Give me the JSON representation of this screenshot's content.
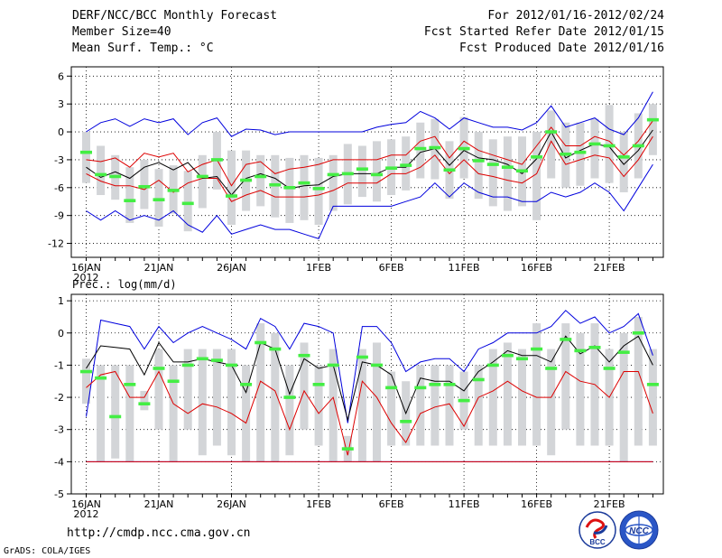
{
  "header": {
    "title": "DERF/NCC/BCC Monthly Forecast",
    "member_size": "Member Size=40",
    "variable": "Mean Surf. Temp.: °C",
    "period": "For 2012/01/16-2012/02/24",
    "started": "Fcst Started Refer Date 2012/01/15",
    "produced": "Fcst Produced Date 2012/01/16"
  },
  "footer": {
    "url": "http://cmdp.ncc.cma.gov.cn",
    "grads": "GrADS: COLA/IGES",
    "logo_bcc": "BCC",
    "logo_ncc": "NCC"
  },
  "colors": {
    "box": "#d3d5d8",
    "median": "#44ee44",
    "mean": "#000000",
    "inner": "#dd0000",
    "outer": "#0000dd"
  },
  "chart_data": [
    {
      "type": "box-and-line",
      "title": "Mean Surf. Temp.: °C",
      "days": [
        "16JAN",
        "17JAN",
        "18JAN",
        "19JAN",
        "20JAN",
        "21JAN",
        "22JAN",
        "23JAN",
        "24JAN",
        "25JAN",
        "26JAN",
        "27JAN",
        "28JAN",
        "29JAN",
        "30JAN",
        "31JAN",
        "1FEB",
        "2FEB",
        "3FEB",
        "4FEB",
        "5FEB",
        "6FEB",
        "7FEB",
        "8FEB",
        "9FEB",
        "10FEB",
        "11FEB",
        "12FEB",
        "13FEB",
        "14FEB",
        "15FEB",
        "16FEB",
        "17FEB",
        "18FEB",
        "19FEB",
        "20FEB",
        "21FEB",
        "22FEB",
        "23FEB",
        "24FEB"
      ],
      "x_tick_labels": [
        "16JAN",
        "21JAN",
        "26JAN",
        "1FEB",
        "6FEB",
        "11FEB",
        "16FEB",
        "21FEB"
      ],
      "year_label": "2012",
      "ylim": [
        -13.5,
        7
      ],
      "yticks": [
        -12,
        -9,
        -6,
        -3,
        0,
        3,
        6
      ],
      "median": [
        -2.2,
        -4.6,
        -4.8,
        -7.4,
        -5.9,
        -7.3,
        -6.3,
        -7.7,
        -4.8,
        -3.0,
        -6.9,
        -5.2,
        -4.8,
        -5.7,
        -6.0,
        -5.5,
        -6.1,
        -4.6,
        -4.5,
        -4.0,
        -4.6,
        -3.9,
        -3.6,
        -1.8,
        -1.7,
        -4.1,
        -1.8,
        -3.1,
        -3.5,
        -3.8,
        -4.2,
        -2.7,
        0.0,
        -2.4,
        -2.2,
        -1.3,
        -1.5,
        -2.7,
        -1.5,
        1.3
      ],
      "box_low": [
        -5.5,
        -6.8,
        -7.3,
        -9.8,
        -8.3,
        -10.2,
        -8.8,
        -10.7,
        -8.2,
        -6.2,
        -10.0,
        -8.5,
        -8.0,
        -9.2,
        -9.8,
        -9.5,
        -10.0,
        -8.5,
        -7.8,
        -7.0,
        -7.5,
        -6.8,
        -6.3,
        -5.0,
        -5.1,
        -7.2,
        -5.0,
        -7.2,
        -8.0,
        -8.5,
        -8.0,
        -9.5,
        -5.0,
        -6.0,
        -5.8,
        -5.0,
        -5.5,
        -6.5,
        -5.0,
        -2.5
      ],
      "box_high": [
        0.0,
        -1.5,
        -2.5,
        -3.8,
        -3.0,
        -4.0,
        -3.6,
        -4.2,
        -2.5,
        0.0,
        -2.0,
        -2.0,
        -2.5,
        -2.5,
        -2.8,
        -2.5,
        -2.8,
        -2.5,
        -1.3,
        -1.5,
        -1.0,
        -0.8,
        -0.5,
        1.0,
        1.4,
        -1.0,
        1.6,
        0.0,
        -0.8,
        -0.5,
        -0.5,
        0.0,
        2.3,
        1.0,
        1.0,
        1.4,
        2.9,
        0.0,
        2.0,
        3.0
      ],
      "mean": [
        -3.8,
        -4.9,
        -4.3,
        -5.0,
        -3.8,
        -3.3,
        -4.1,
        -3.3,
        -5.0,
        -4.8,
        -6.8,
        -5.0,
        -4.5,
        -5.0,
        -6.1,
        -5.8,
        -5.7,
        -4.8,
        -4.5,
        -4.5,
        -4.5,
        -3.8,
        -3.8,
        -2.2,
        -1.8,
        -3.6,
        -2.0,
        -2.8,
        -3.0,
        -3.5,
        -4.5,
        -2.9,
        0.0,
        -2.8,
        -2.0,
        -1.3,
        -1.6,
        -3.5,
        -2.0,
        0.2
      ],
      "inner_upper": [
        -3.0,
        -3.2,
        -2.8,
        -3.8,
        -2.3,
        -2.7,
        -2.3,
        -4.3,
        -3.5,
        -3.0,
        -5.8,
        -3.5,
        -3.2,
        -4.5,
        -4.0,
        -3.8,
        -3.5,
        -3.0,
        -3.0,
        -3.0,
        -3.0,
        -2.5,
        -2.5,
        -1.0,
        -0.5,
        -2.8,
        -1.0,
        -2.0,
        -2.5,
        -3.0,
        -3.5,
        -1.5,
        0.5,
        -1.5,
        -1.5,
        -0.5,
        -1.0,
        -2.5,
        -1.0,
        1.2
      ],
      "inner_lower": [
        -4.5,
        -5.3,
        -5.8,
        -5.8,
        -6.2,
        -5.2,
        -6.5,
        -5.5,
        -5.0,
        -5.0,
        -7.5,
        -6.8,
        -6.3,
        -7.0,
        -7.0,
        -7.0,
        -6.8,
        -6.3,
        -5.5,
        -5.5,
        -5.5,
        -4.5,
        -4.5,
        -3.8,
        -2.5,
        -4.5,
        -3.0,
        -4.5,
        -4.8,
        -5.2,
        -5.5,
        -4.5,
        -1.0,
        -3.5,
        -3.0,
        -2.5,
        -2.8,
        -4.8,
        -3.0,
        -0.5
      ],
      "outer_upper": [
        0.0,
        1.0,
        1.4,
        0.6,
        1.4,
        1.0,
        1.4,
        -0.3,
        1.0,
        1.5,
        -0.5,
        0.3,
        0.2,
        -0.3,
        0.0,
        0.0,
        0.0,
        0.0,
        0.0,
        0.0,
        0.5,
        0.8,
        1.0,
        2.2,
        1.5,
        0.3,
        1.5,
        1.0,
        0.5,
        0.5,
        0.2,
        1.0,
        2.8,
        0.5,
        1.0,
        1.5,
        0.3,
        -0.3,
        1.5,
        4.3
      ],
      "outer_lower": [
        -8.5,
        -9.5,
        -8.5,
        -9.5,
        -9.0,
        -9.5,
        -8.5,
        -10.0,
        -10.8,
        -9.0,
        -11.0,
        -10.5,
        -10.0,
        -10.5,
        -10.5,
        -11.0,
        -11.5,
        -8.0,
        -8.0,
        -8.0,
        -8.0,
        -8.0,
        -7.5,
        -7.0,
        -5.5,
        -7.0,
        -5.5,
        -6.5,
        -7.0,
        -7.0,
        -7.5,
        -7.5,
        -6.5,
        -7.0,
        -6.5,
        -5.5,
        -6.5,
        -8.5,
        -6.0,
        -3.5
      ]
    },
    {
      "type": "box-and-line",
      "title": "Prec.: log(mm/d)",
      "days": [
        "16JAN",
        "17JAN",
        "18JAN",
        "19JAN",
        "20JAN",
        "21JAN",
        "22JAN",
        "23JAN",
        "24JAN",
        "25JAN",
        "26JAN",
        "27JAN",
        "28JAN",
        "29JAN",
        "30JAN",
        "31JAN",
        "1FEB",
        "2FEB",
        "3FEB",
        "4FEB",
        "5FEB",
        "6FEB",
        "7FEB",
        "8FEB",
        "9FEB",
        "10FEB",
        "11FEB",
        "12FEB",
        "13FEB",
        "14FEB",
        "15FEB",
        "16FEB",
        "17FEB",
        "18FEB",
        "19FEB",
        "20FEB",
        "21FEB",
        "22FEB",
        "23FEB",
        "24FEB"
      ],
      "x_tick_labels": [
        "16JAN",
        "21JAN",
        "26JAN",
        "1FEB",
        "6FEB",
        "11FEB",
        "16FEB",
        "21FEB"
      ],
      "year_label": "2012",
      "ylim": [
        -5,
        1.2
      ],
      "yticks": [
        -5,
        -4,
        -3,
        -2,
        -1,
        0,
        1
      ],
      "median": [
        -1.2,
        -1.4,
        -2.6,
        -1.6,
        -2.2,
        -1.1,
        -1.5,
        -1.0,
        -0.8,
        -0.85,
        -1.0,
        -1.6,
        -0.3,
        -0.5,
        -2.0,
        -0.7,
        -1.6,
        -1.0,
        -3.6,
        -0.75,
        -1.0,
        -1.7,
        -2.75,
        -1.7,
        -1.6,
        -1.6,
        -2.1,
        -1.45,
        -1.0,
        -0.7,
        -0.8,
        -0.5,
        -1.1,
        -0.2,
        -0.55,
        -0.45,
        -1.1,
        -0.6,
        0.0,
        -1.6
      ],
      "box_low": [
        -2.2,
        -4.0,
        -3.9,
        -4.0,
        -2.4,
        -3.0,
        -4.0,
        -3.0,
        -3.8,
        -3.5,
        -3.8,
        -4.0,
        -4.0,
        -4.0,
        -3.8,
        -3.0,
        -3.5,
        -4.0,
        -4.0,
        -4.0,
        -4.0,
        -3.5,
        -3.5,
        -3.5,
        -3.5,
        -3.5,
        -3.0,
        -3.5,
        -3.5,
        -3.5,
        -3.5,
        -3.5,
        -3.8,
        -3.0,
        -3.5,
        -3.5,
        -3.5,
        -4.0,
        -3.5,
        -3.5
      ],
      "box_high": [
        -0.8,
        -1.0,
        -1.0,
        -1.0,
        -1.8,
        -0.5,
        -1.0,
        -0.5,
        -0.5,
        -0.5,
        -0.5,
        -1.0,
        0.3,
        0.0,
        -1.0,
        -0.3,
        -1.0,
        -0.5,
        -3.2,
        -0.5,
        -0.3,
        -1.2,
        -1.5,
        -1.0,
        -1.0,
        -1.0,
        -1.2,
        -1.0,
        -0.5,
        -0.3,
        -0.5,
        0.3,
        -0.5,
        0.3,
        0.0,
        0.3,
        -0.5,
        0.0,
        0.5,
        -0.5
      ],
      "mean": [
        -1.1,
        -0.4,
        -0.45,
        -0.5,
        -1.3,
        -0.3,
        -0.9,
        -0.9,
        -0.8,
        -0.9,
        -1.0,
        -1.85,
        -0.3,
        -0.5,
        -1.9,
        -0.8,
        -1.1,
        -1.0,
        -2.7,
        -0.9,
        -1.0,
        -1.3,
        -2.5,
        -1.4,
        -1.5,
        -1.5,
        -1.8,
        -1.2,
        -0.9,
        -0.55,
        -0.7,
        -0.7,
        -0.9,
        -0.1,
        -0.65,
        -0.4,
        -0.9,
        -0.4,
        -0.1,
        -1.0
      ],
      "inner_upper": [
        -1.7,
        -1.3,
        -1.2,
        -2.0,
        -2.0,
        -1.2,
        -2.2,
        -2.5,
        -2.2,
        -2.3,
        -2.5,
        -2.8,
        -1.5,
        -1.8,
        -3.0,
        -1.8,
        -2.5,
        -2.0,
        -3.8,
        -1.5,
        -2.0,
        -2.8,
        -3.4,
        -2.5,
        -2.3,
        -2.2,
        -2.9,
        -2.0,
        -1.8,
        -1.5,
        -1.8,
        -2.0,
        -2.0,
        -1.2,
        -1.5,
        -1.6,
        -2.0,
        -1.2,
        -1.2,
        -2.5
      ],
      "inner_lower": [
        -4.0,
        -4.0,
        -4.0,
        -4.0,
        -4.0,
        -4.0,
        -4.0,
        -4.0,
        -4.0,
        -4.0,
        -4.0,
        -4.0,
        -4.0,
        -4.0,
        -4.0,
        -4.0,
        -4.0,
        -4.0,
        -4.0,
        -4.0,
        -4.0,
        -4.0,
        -4.0,
        -4.0,
        -4.0,
        -4.0,
        -4.0,
        -4.0,
        -4.0,
        -4.0,
        -4.0,
        -4.0,
        -4.0,
        -4.0,
        -4.0,
        -4.0,
        -4.0,
        -4.0,
        -4.0,
        -4.0
      ],
      "outer_upper": [
        -2.6,
        0.4,
        0.3,
        0.2,
        -0.5,
        0.2,
        -0.3,
        0.0,
        0.2,
        0.0,
        -0.2,
        -0.5,
        0.45,
        0.2,
        -0.5,
        0.3,
        0.2,
        0.0,
        -2.8,
        0.2,
        0.2,
        -0.3,
        -1.2,
        -0.9,
        -0.8,
        -0.8,
        -1.2,
        -0.5,
        -0.3,
        0.0,
        0.0,
        0.0,
        0.2,
        0.7,
        0.3,
        0.5,
        0.0,
        0.2,
        0.6,
        -0.7
      ],
      "outer_lower": [
        -4.0,
        -4.0,
        -4.0,
        -4.0,
        -4.0,
        -4.0,
        -4.0,
        -4.0,
        -4.0,
        -4.0,
        -4.0,
        -4.0,
        -4.0,
        -4.0,
        -4.0,
        -4.0,
        -4.0,
        -4.0,
        -4.0,
        -4.0,
        -4.0,
        -4.0,
        -4.0,
        -4.0,
        -4.0,
        -4.0,
        -4.0,
        -4.0,
        -4.0,
        -4.0,
        -4.0,
        -4.0,
        -4.0,
        -4.0,
        -4.0,
        -4.0,
        -4.0,
        -4.0,
        -4.0,
        -4.0
      ]
    }
  ]
}
